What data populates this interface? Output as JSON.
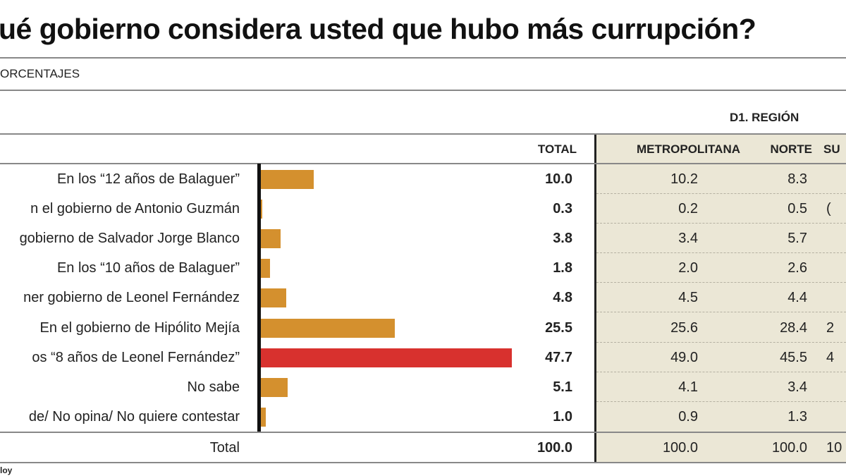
{
  "title": "ué gobierno considera usted que hubo más currupción?",
  "subtitle": "ORCENTAJES",
  "source": "loy",
  "chart_data": {
    "type": "bar",
    "orientation": "horizontal",
    "group_header": "D1. REGIÓN",
    "columns": [
      "TOTAL",
      "METROPOLITANA",
      "NORTE",
      "SU"
    ],
    "categories": [
      "En los “12 años de Balaguer”",
      "n el gobierno de Antonio Guzmán",
      "gobierno de Salvador Jorge Blanco",
      "En los “10 años de Balaguer”",
      "ner gobierno de Leonel Fernández",
      "En el gobierno de Hipólito Mejía",
      "os “8 años de Leonel Fernández”",
      "No sabe",
      "de/ No opina/ No quiere contestar"
    ],
    "values": [
      10.0,
      0.3,
      3.8,
      1.8,
      4.8,
      25.5,
      47.7,
      5.1,
      1.0
    ],
    "values_text": [
      "10.0",
      "0.3",
      "3.8",
      "1.8",
      "4.8",
      "25.5",
      "47.7",
      "5.1",
      "1.0"
    ],
    "metropolitana": [
      "10.2",
      "0.2",
      "3.4",
      "2.0",
      "4.5",
      "25.6",
      "49.0",
      "4.1",
      "0.9"
    ],
    "norte": [
      "8.3",
      "0.5",
      "5.7",
      "2.6",
      "4.4",
      "28.4",
      "45.5",
      "3.4",
      "1.3"
    ],
    "sur_partial": [
      "",
      "(",
      "",
      "",
      "",
      "2",
      "4",
      "",
      ""
    ],
    "total_label": "Total",
    "totals": [
      "100.0",
      "100.0",
      "100.0",
      "10"
    ],
    "highlight_index": 6,
    "colors": {
      "bar": "#d4902e",
      "highlight": "#d8312e",
      "panel": "#ebe7d6"
    }
  }
}
